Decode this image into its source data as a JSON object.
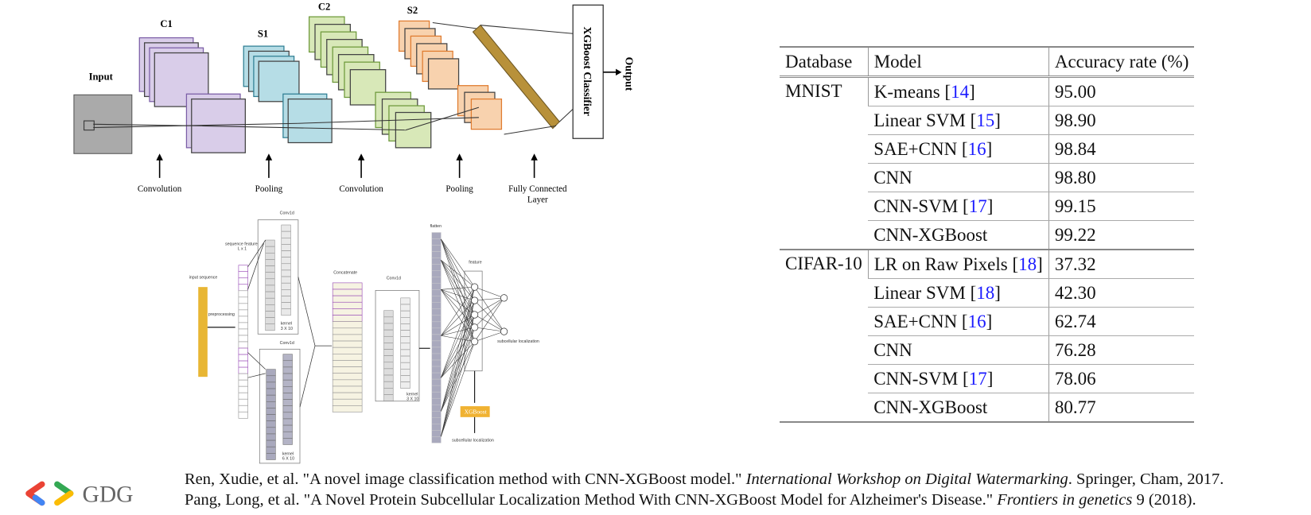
{
  "diagram1": {
    "labels": {
      "input": "Input",
      "c1": "C1",
      "s1": "S1",
      "c2": "C2",
      "s2": "S2",
      "classifier": "XGBoost Classifier",
      "output": "Output"
    },
    "stages": [
      [
        "Convolution"
      ],
      [
        "Pooling"
      ],
      [
        "Convolution"
      ],
      [
        "Pooling"
      ],
      [
        "Fully Connected",
        "Layer"
      ]
    ]
  },
  "diagram2": {
    "labels": {
      "input": "input sequence",
      "preprocessing": "preprocessing",
      "feature": "sequence feature",
      "feature_size": "L x 1",
      "conv_a": "Conv1d",
      "kernel_a": "kernel",
      "kernel_a_size": "3 X 10",
      "conv_b": "Conv1d",
      "kernel_b": "kernel",
      "kernel_b_size": "6 X 10",
      "concat": "Concatenate",
      "conv_c": "Conv1d",
      "kernel_c": "kernel",
      "kernel_c_size": "3 X 10",
      "flatten": "flatten",
      "feature_layer": "feature",
      "output_a": "subcellular localization",
      "xgboost": "XGBoost",
      "output_b": "subcellular localization"
    }
  },
  "table": {
    "header": [
      "Database",
      "Model",
      "Accuracy rate (%)"
    ],
    "groups": [
      {
        "database": "MNIST",
        "rows": [
          {
            "model": [
              "K-means [",
              "14",
              "]"
            ],
            "accuracy": "95.00"
          },
          {
            "model": [
              "Linear SVM [",
              "15",
              "]"
            ],
            "accuracy": "98.90"
          },
          {
            "model": [
              "SAE+CNN [",
              "16",
              "]"
            ],
            "accuracy": "98.84"
          },
          {
            "model": [
              "CNN"
            ],
            "accuracy": "98.80"
          },
          {
            "model": [
              "CNN-SVM [",
              "17",
              "]"
            ],
            "accuracy": "99.15"
          },
          {
            "model": [
              "CNN-XGBoost"
            ],
            "accuracy": "99.22"
          }
        ]
      },
      {
        "database": "CIFAR-10",
        "rows": [
          {
            "model": [
              "LR on Raw Pixels [",
              "18",
              "]"
            ],
            "accuracy": "37.32"
          },
          {
            "model": [
              "Linear SVM [",
              "18",
              "]"
            ],
            "accuracy": "42.30"
          },
          {
            "model": [
              "SAE+CNN [",
              "16",
              "]"
            ],
            "accuracy": "62.74"
          },
          {
            "model": [
              "CNN"
            ],
            "accuracy": "76.28"
          },
          {
            "model": [
              "CNN-SVM [",
              "17",
              "]"
            ],
            "accuracy": "78.06"
          },
          {
            "model": [
              "CNN-XGBoost"
            ],
            "accuracy": "80.77"
          }
        ]
      }
    ]
  },
  "references": [
    {
      "text": "Ren, Xudie, et al. \"A novel image classification method with CNN-XGBoost model.\" ",
      "venue": "International Workshop on Digital Watermarking",
      "rest": ". Springer, Cham, 2017."
    },
    {
      "text": "Pang, Long, et al. \"A Novel Protein Subcellular Localization Method With CNN-XGBoost Model for Alzheimer's Disease.\" ",
      "venue": "Frontiers in genetics",
      "rest": " 9 (2018)."
    }
  ],
  "logo": "GDG"
}
